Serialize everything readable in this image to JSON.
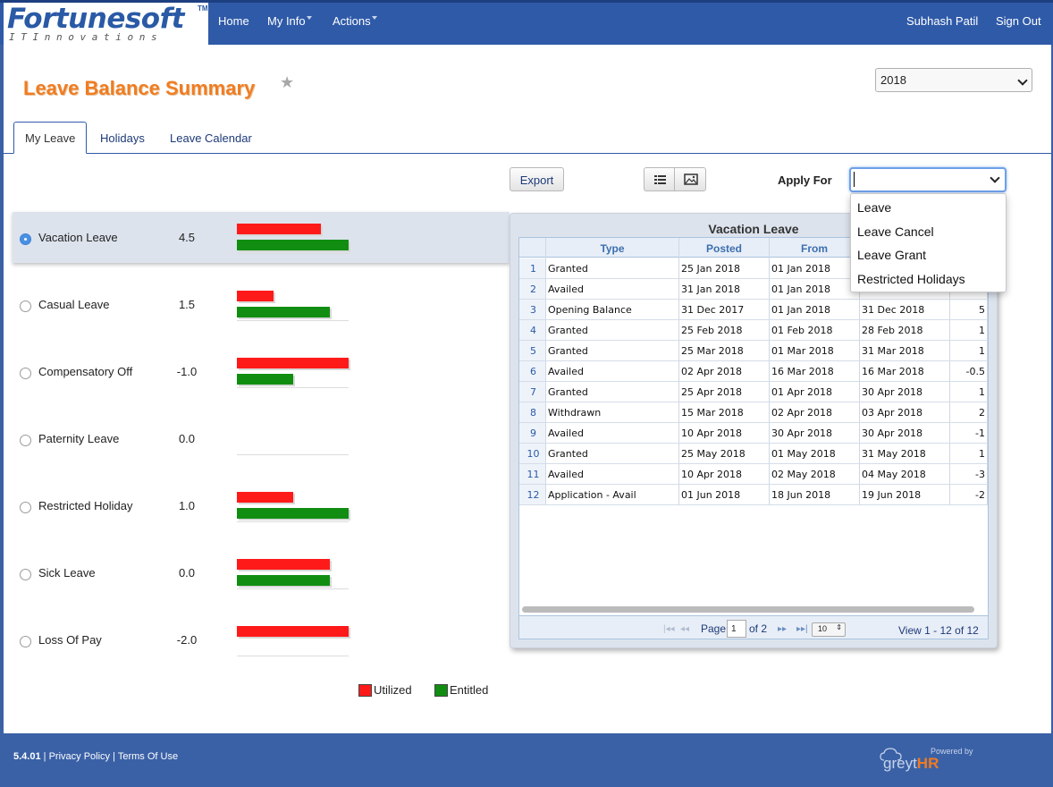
{
  "brand": {
    "name": "Fortunesoft",
    "trademark": "TM",
    "tagline": "I T I n n o v a t i o n s"
  },
  "nav": {
    "home": "Home",
    "my_info": "My Info",
    "actions": "Actions",
    "user": "Subhash Patil",
    "sign_out": "Sign Out"
  },
  "page": {
    "title": "Leave Balance Summary",
    "year": "2018"
  },
  "tabs": [
    "My Leave",
    "Holidays",
    "Leave Calendar"
  ],
  "toolbar": {
    "export": "Export",
    "apply_for_label": "Apply For",
    "apply_for_value": ""
  },
  "apply_menu": [
    "Leave",
    "Leave Cancel",
    "Leave Grant",
    "Restricted Holidays"
  ],
  "leave_types": [
    {
      "name": "Vacation Leave",
      "balance": "4.5",
      "utilized": 0.75,
      "entitled": 1.0,
      "selected": true
    },
    {
      "name": "Casual Leave",
      "balance": "1.5",
      "utilized": 0.33,
      "entitled": 0.83,
      "selected": false
    },
    {
      "name": "Compensatory Off",
      "balance": "-1.0",
      "utilized": 1.0,
      "entitled": 0.5,
      "selected": false
    },
    {
      "name": "Paternity Leave",
      "balance": "0.0",
      "utilized": 0,
      "entitled": 0,
      "selected": false
    },
    {
      "name": "Restricted Holiday",
      "balance": "1.0",
      "utilized": 0.5,
      "entitled": 1.0,
      "selected": false
    },
    {
      "name": "Sick Leave",
      "balance": "0.0",
      "utilized": 0.83,
      "entitled": 0.83,
      "selected": false
    },
    {
      "name": "Loss Of Pay",
      "balance": "-2.0",
      "utilized": 1.0,
      "entitled": 0,
      "selected": false
    }
  ],
  "legend": {
    "utilized": "Utilized",
    "entitled": "Entitled",
    "utilized_color": "#ff1a1a",
    "entitled_color": "#118e11"
  },
  "grid": {
    "caption": "Vacation Leave",
    "columns": [
      "Type",
      "Posted",
      "From"
    ],
    "rows": [
      {
        "n": "1",
        "type": "Granted",
        "posted": "25 Jan 2018",
        "from": "01 Jan 2018",
        "to": "",
        "days": ""
      },
      {
        "n": "2",
        "type": "Availed",
        "posted": "31 Jan 2018",
        "from": "01 Jan 2018",
        "to": "",
        "days": ""
      },
      {
        "n": "3",
        "type": "Opening Balance",
        "posted": "31 Dec 2017",
        "from": "01 Jan 2018",
        "to": "31 Dec 2018",
        "days": "5"
      },
      {
        "n": "4",
        "type": "Granted",
        "posted": "25 Feb 2018",
        "from": "01 Feb 2018",
        "to": "28 Feb 2018",
        "days": "1"
      },
      {
        "n": "5",
        "type": "Granted",
        "posted": "25 Mar 2018",
        "from": "01 Mar 2018",
        "to": "31 Mar 2018",
        "days": "1"
      },
      {
        "n": "6",
        "type": "Availed",
        "posted": "02 Apr 2018",
        "from": "16 Mar 2018",
        "to": "16 Mar 2018",
        "days": "-0.5"
      },
      {
        "n": "7",
        "type": "Granted",
        "posted": "25 Apr 2018",
        "from": "01 Apr 2018",
        "to": "30 Apr 2018",
        "days": "1"
      },
      {
        "n": "8",
        "type": "Withdrawn",
        "posted": "15 Mar 2018",
        "from": "02 Apr 2018",
        "to": "03 Apr 2018",
        "days": "2"
      },
      {
        "n": "9",
        "type": "Availed",
        "posted": "10 Apr 2018",
        "from": "30 Apr 2018",
        "to": "30 Apr 2018",
        "days": "-1"
      },
      {
        "n": "10",
        "type": "Granted",
        "posted": "25 May 2018",
        "from": "01 May 2018",
        "to": "31 May 2018",
        "days": "1"
      },
      {
        "n": "11",
        "type": "Availed",
        "posted": "10 Apr 2018",
        "from": "02 May 2018",
        "to": "04 May 2018",
        "days": "-3"
      },
      {
        "n": "12",
        "type": "Application - Avail",
        "posted": "01 Jun 2018",
        "from": "18 Jun 2018",
        "to": "19 Jun 2018",
        "days": "-2"
      }
    ],
    "pager": {
      "page_label": "Page",
      "page": "1",
      "of_label": "of 2",
      "rows_per_page": "10",
      "summary": "View 1 - 12 of 12"
    }
  },
  "footer": {
    "version": "5.4.01",
    "privacy": "Privacy Policy",
    "terms": "Terms Of Use",
    "powered_by": "Powered by",
    "product_a": "greyt",
    "product_b": "HR"
  }
}
